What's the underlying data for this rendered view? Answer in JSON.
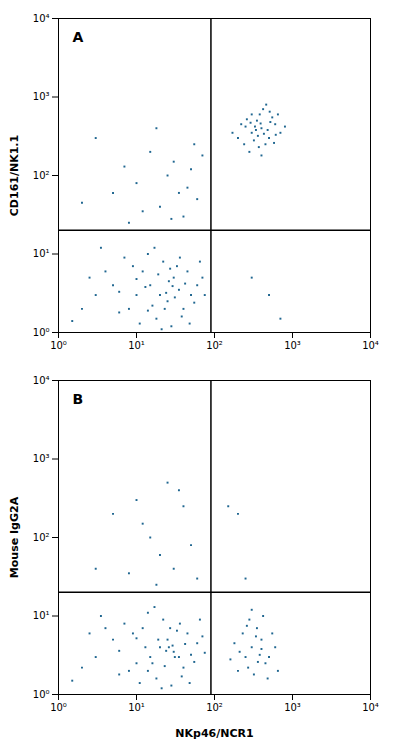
{
  "chart_data": [
    {
      "type": "scatter",
      "title": "A",
      "y_label": "CD161/NK1.1",
      "log": true,
      "grid": false,
      "marker": "square",
      "color": "#1f6690",
      "xlim": [
        1,
        10000
      ],
      "ylim": [
        1,
        10000
      ],
      "xticks": [
        {
          "value": 1,
          "label": "10⁰"
        },
        {
          "value": 10,
          "label": "10¹"
        },
        {
          "value": 100,
          "label": "10²"
        },
        {
          "value": 1000,
          "label": "10³"
        },
        {
          "value": 10000,
          "label": "10⁴"
        }
      ],
      "yticks": [
        {
          "value": 1,
          "label": "10⁰"
        },
        {
          "value": 10,
          "label": "10¹"
        },
        {
          "value": 100,
          "label": "10²"
        },
        {
          "value": 1000,
          "label": "10³"
        },
        {
          "value": 10000,
          "label": "10⁴"
        }
      ],
      "quadrant_x": 90,
      "quadrant_y": 20,
      "x": [
        20,
        15,
        25,
        30,
        10,
        8,
        12,
        18,
        35,
        40,
        22,
        5,
        6,
        28,
        45,
        50,
        60,
        14,
        9,
        3,
        4,
        2,
        16,
        26,
        33,
        38,
        11,
        7,
        19,
        24,
        55,
        70,
        13,
        17,
        31,
        42,
        21,
        27,
        2.5,
        65,
        1.5,
        3.5,
        48,
        36,
        23,
        29,
        10,
        14,
        75,
        6,
        20,
        10,
        30,
        5,
        40,
        15,
        60,
        25,
        8,
        50,
        3,
        35,
        70,
        12,
        45,
        18,
        28,
        55,
        7,
        2,
        400,
        300,
        500,
        350,
        450,
        250,
        600,
        380,
        320,
        550,
        200,
        420,
        280,
        700,
        480,
        360,
        520,
        260,
        400,
        330,
        650,
        220,
        460,
        300,
        580,
        390,
        240,
        800,
        340,
        430,
        170,
        510,
        290,
        610,
        370,
        300,
        500,
        700
      ],
      "values": [
        3,
        4,
        2.5,
        5,
        3,
        2,
        6,
        1.5,
        3.5,
        2,
        8,
        4,
        1.8,
        1.2,
        6,
        3,
        4,
        10,
        7,
        3,
        6,
        2,
        2.2,
        4.5,
        7,
        1.6,
        1.3,
        9,
        5.5,
        3.2,
        2.4,
        5,
        3.8,
        12,
        2.8,
        4.2,
        1.1,
        6.5,
        5,
        8,
        1.4,
        12,
        1.3,
        9,
        2,
        3.9,
        4.8,
        1.9,
        3,
        3.3,
        40,
        80,
        150,
        60,
        30,
        200,
        50,
        100,
        25,
        120,
        300,
        60,
        180,
        35,
        70,
        400,
        28,
        250,
        130,
        45,
        400,
        350,
        300,
        500,
        250,
        420,
        450,
        600,
        280,
        550,
        300,
        700,
        200,
        350,
        380,
        320,
        480,
        520,
        180,
        420,
        600,
        450,
        800,
        600,
        260,
        460,
        250,
        420,
        380,
        340,
        350,
        650,
        470,
        330,
        230,
        5,
        3,
        1.5
      ]
    },
    {
      "type": "scatter",
      "title": "B",
      "y_label": "Mouse IgG2A",
      "x_label": "NKp46/NCR1",
      "log": true,
      "grid": false,
      "marker": "square",
      "color": "#1f6690",
      "xlim": [
        1,
        10000
      ],
      "ylim": [
        1,
        10000
      ],
      "xticks": [
        {
          "value": 1,
          "label": "10⁰"
        },
        {
          "value": 10,
          "label": "10¹"
        },
        {
          "value": 100,
          "label": "10²"
        },
        {
          "value": 1000,
          "label": "10³"
        },
        {
          "value": 10000,
          "label": "10⁴"
        }
      ],
      "yticks": [
        {
          "value": 1,
          "label": "10⁰"
        },
        {
          "value": 10,
          "label": "10¹"
        },
        {
          "value": 100,
          "label": "10²"
        },
        {
          "value": 1000,
          "label": "10³"
        },
        {
          "value": 10000,
          "label": "10⁴"
        }
      ],
      "quadrant_x": 90,
      "quadrant_y": 20,
      "x": [
        20,
        15,
        25,
        30,
        10,
        8,
        12,
        18,
        35,
        40,
        22,
        5,
        6,
        28,
        45,
        50,
        60,
        14,
        9,
        3,
        4,
        2,
        16,
        26,
        33,
        38,
        11,
        7,
        19,
        24,
        55,
        70,
        13,
        17,
        31,
        42,
        21,
        27,
        2.5,
        65,
        1.5,
        3.5,
        48,
        36,
        23,
        29,
        10,
        14,
        75,
        6,
        300,
        250,
        400,
        200,
        350,
        500,
        280,
        450,
        180,
        320,
        600,
        230,
        380,
        420,
        270,
        550,
        210,
        340,
        480,
        300,
        160,
        360,
        650,
        260,
        400,
        10,
        20,
        5,
        30,
        15,
        40,
        8,
        25,
        50,
        12,
        60,
        3,
        35,
        18,
        150,
        250,
        200
      ],
      "values": [
        4,
        3,
        5,
        3.5,
        2.5,
        2,
        7,
        1.6,
        3,
        2.2,
        9,
        5,
        1.8,
        1.3,
        6,
        3.2,
        4.5,
        11,
        6,
        3,
        7,
        2.2,
        2.5,
        4,
        6.5,
        1.7,
        1.4,
        8,
        5,
        3.6,
        2.6,
        5.5,
        4,
        13,
        3,
        4.4,
        1.2,
        7,
        6,
        9,
        1.5,
        10,
        1.4,
        8,
        2.3,
        4.2,
        5.2,
        2,
        3.4,
        3.6,
        4,
        3,
        5,
        2,
        7,
        3,
        9,
        2.5,
        4.5,
        1.8,
        4,
        6,
        3.2,
        10,
        2.2,
        6,
        3.5,
        5.5,
        1.6,
        12,
        2.8,
        2.6,
        2,
        7.5,
        3.8,
        300,
        60,
        200,
        40,
        100,
        250,
        35,
        500,
        80,
        150,
        30,
        40,
        400,
        25,
        250,
        30,
        200
      ]
    }
  ]
}
